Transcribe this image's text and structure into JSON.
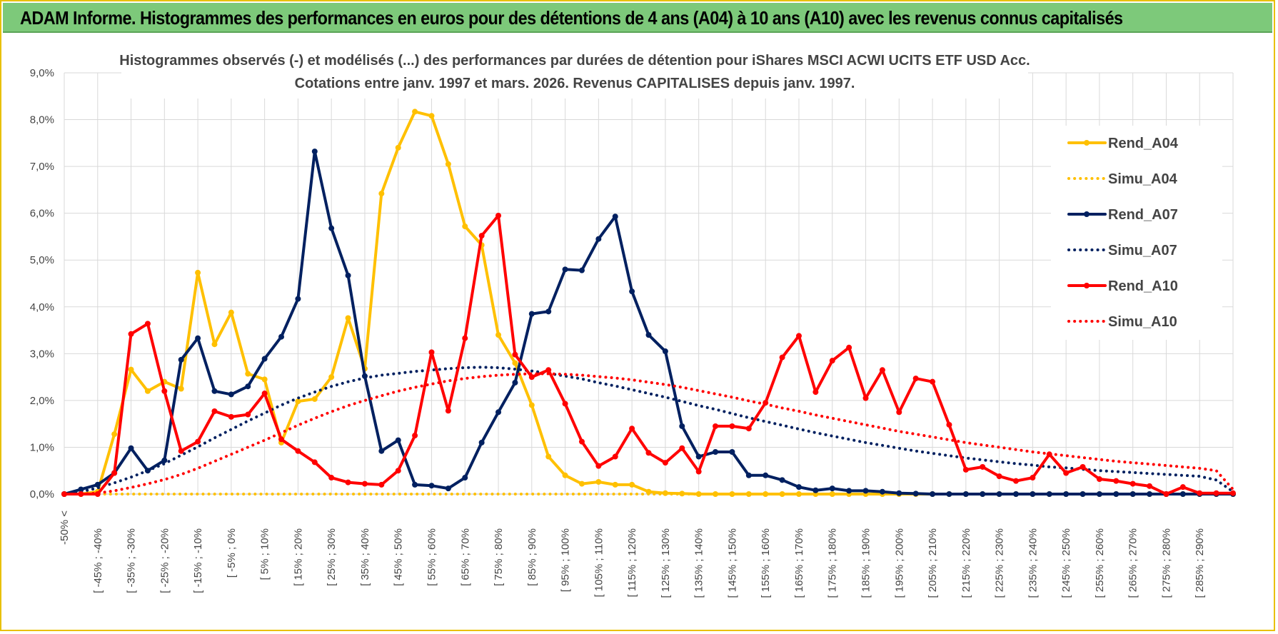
{
  "banner": {
    "title": "ADAM Informe. Histogrammes des performances en euros pour des détentions de 4 ans (A04) à 10 ans (A10) avec les revenus connus capitalisés"
  },
  "colors": {
    "a04": "#ffc000",
    "a07": "#002060",
    "a10": "#ff0000",
    "grid": "#d9d9d9",
    "banner": "#7dc97a"
  },
  "chart_data": {
    "type": "line",
    "title_lines": [
      "Histogrammes observés (-) et modélisés (...) des performances par durées de détention pour iShares MSCI ACWI UCITS ETF USD Acc.",
      "Cotations entre janv. 1997 et mars. 2026.  Revenus CAPITALISES depuis janv. 1997."
    ],
    "ylim": [
      0,
      9
    ],
    "y_ticks": [
      0,
      1,
      2,
      3,
      4,
      5,
      6,
      7,
      8,
      9
    ],
    "y_tick_labels": [
      "0,0%",
      "1,0%",
      "2,0%",
      "3,0%",
      "4,0%",
      "5,0%",
      "6,0%",
      "7,0%",
      "8,0%",
      "9,0%"
    ],
    "x_tick_labels": [
      "-50% <",
      "[ -45% ; -40%",
      "[ -35% ; -30%",
      "[ -25% ; -20%",
      "[ -15% ; -10%",
      "[ -5% ; 0%",
      "[ 5% ; 10%",
      "[ 15% ; 20%",
      "[ 25% ; 30%",
      "[ 35% ; 40%",
      "[ 45% ; 50%",
      "[ 55% ; 60%",
      "[ 65% ; 70%",
      "[ 75% ; 80%",
      "[ 85% ; 90%",
      "[ 95% ; 100%",
      "[ 105% ; 110%",
      "[ 115% ; 120%",
      "[ 125% ; 130%",
      "[ 135% ; 140%",
      "[ 145% ; 150%",
      "[ 155% ; 160%",
      "[ 165% ; 170%",
      "[ 175% ; 180%",
      "[ 185% ; 190%",
      "[ 195% ; 200%",
      "[ 205% ; 210%",
      "[ 215% ; 220%",
      "[ 225% ; 230%",
      "[ 235% ; 240%",
      "[ 245% ; 250%",
      "[ 255% ; 260%",
      "[ 265% ; 270%",
      "[ 275% ; 280%",
      "[ 285% ; 290%"
    ],
    "n_points": 71,
    "legend_position": "right",
    "series": [
      {
        "name": "Rend_A04",
        "style": "solid",
        "color": "#ffc000",
        "values": [
          0,
          0,
          0.05,
          1.28,
          2.66,
          2.2,
          2.4,
          2.25,
          4.73,
          3.2,
          3.88,
          2.57,
          2.45,
          1.1,
          1.98,
          2.03,
          2.5,
          3.76,
          2.68,
          6.42,
          7.4,
          8.17,
          8.08,
          7.05,
          5.72,
          5.32,
          3.4,
          2.8,
          1.9,
          0.8,
          0.4,
          0.22,
          0.26,
          0.2,
          0.2,
          0.05,
          0.02,
          0.01,
          0,
          0,
          0,
          0,
          0,
          0,
          0,
          0,
          0,
          0,
          0,
          0,
          0,
          0,
          0,
          0,
          0,
          0,
          0,
          0,
          0,
          0,
          0,
          0,
          0,
          0,
          0,
          0,
          0,
          0,
          0,
          0,
          0
        ]
      },
      {
        "name": "Simu_A04",
        "style": "dotted",
        "color": "#ffc000",
        "values": [
          0,
          0,
          0,
          0,
          0,
          0,
          0,
          0,
          0,
          0,
          0,
          0,
          0,
          0,
          0,
          0,
          0,
          0,
          0,
          0,
          0,
          0,
          0,
          0,
          0,
          0,
          0,
          0,
          0,
          0,
          0,
          0,
          0,
          0,
          0,
          0,
          0,
          0,
          0,
          0,
          0,
          0,
          0,
          0,
          0,
          0,
          0,
          0,
          0,
          0,
          0,
          0,
          0,
          0,
          0,
          0,
          0,
          0,
          0,
          0,
          0,
          0,
          0,
          0,
          0,
          0,
          0,
          0,
          0,
          0,
          0
        ]
      },
      {
        "name": "Rend_A07",
        "style": "solid",
        "color": "#002060",
        "values": [
          0,
          0.1,
          0.2,
          0.45,
          0.98,
          0.5,
          0.72,
          2.87,
          3.33,
          2.2,
          2.13,
          2.3,
          2.89,
          3.36,
          4.17,
          7.32,
          5.68,
          4.67,
          2.52,
          0.92,
          1.15,
          0.2,
          0.18,
          0.12,
          0.35,
          1.1,
          1.75,
          2.38,
          3.85,
          3.9,
          4.8,
          4.78,
          5.45,
          5.93,
          4.33,
          3.4,
          3.05,
          1.45,
          0.8,
          0.9,
          0.9,
          0.4,
          0.4,
          0.3,
          0.15,
          0.08,
          0.12,
          0.07,
          0.07,
          0.05,
          0.02,
          0.01,
          0,
          0,
          0,
          0,
          0,
          0,
          0,
          0,
          0,
          0,
          0,
          0,
          0,
          0,
          0,
          0,
          0,
          0,
          0
        ]
      },
      {
        "name": "Simu_A07",
        "style": "dotted",
        "color": "#002060",
        "values": [
          0.02,
          0.05,
          0.13,
          0.24,
          0.36,
          0.5,
          0.65,
          0.83,
          1.01,
          1.2,
          1.38,
          1.56,
          1.73,
          1.9,
          2.05,
          2.18,
          2.3,
          2.4,
          2.48,
          2.54,
          2.58,
          2.62,
          2.65,
          2.68,
          2.7,
          2.71,
          2.7,
          2.67,
          2.63,
          2.58,
          2.52,
          2.46,
          2.38,
          2.31,
          2.23,
          2.15,
          2.07,
          1.98,
          1.89,
          1.81,
          1.72,
          1.63,
          1.55,
          1.47,
          1.39,
          1.31,
          1.24,
          1.17,
          1.1,
          1.04,
          0.98,
          0.92,
          0.87,
          0.82,
          0.77,
          0.73,
          0.69,
          0.65,
          0.62,
          0.58,
          0.56,
          0.53,
          0.5,
          0.48,
          0.46,
          0.44,
          0.42,
          0.4,
          0.38,
          0.3,
          0.05
        ]
      },
      {
        "name": "Rend_A10",
        "style": "solid",
        "color": "#ff0000",
        "values": [
          0,
          0,
          0,
          0.45,
          3.42,
          3.64,
          2.2,
          0.92,
          1.12,
          1.77,
          1.65,
          1.7,
          2.15,
          1.17,
          0.92,
          0.68,
          0.35,
          0.25,
          0.22,
          0.2,
          0.5,
          1.25,
          3.03,
          1.78,
          3.33,
          5.52,
          5.95,
          2.98,
          2.5,
          2.65,
          1.93,
          1.12,
          0.6,
          0.8,
          1.4,
          0.88,
          0.67,
          0.98,
          0.48,
          1.45,
          1.45,
          1.4,
          1.95,
          2.92,
          3.38,
          2.18,
          2.85,
          3.13,
          2.05,
          2.65,
          1.75,
          2.47,
          2.4,
          1.48,
          0.52,
          0.58,
          0.38,
          0.28,
          0.35,
          0.85,
          0.45,
          0.58,
          0.32,
          0.28,
          0.22,
          0.17,
          0.0,
          0.15,
          0.02,
          0.02,
          0.02
        ]
      },
      {
        "name": "Simu_A10",
        "style": "dotted",
        "color": "#ff0000",
        "values": [
          0,
          0,
          0.02,
          0.07,
          0.14,
          0.22,
          0.31,
          0.42,
          0.55,
          0.7,
          0.85,
          1.0,
          1.15,
          1.31,
          1.47,
          1.62,
          1.76,
          1.89,
          2.0,
          2.1,
          2.2,
          2.28,
          2.35,
          2.42,
          2.47,
          2.51,
          2.54,
          2.56,
          2.57,
          2.57,
          2.56,
          2.54,
          2.51,
          2.48,
          2.44,
          2.39,
          2.34,
          2.28,
          2.21,
          2.14,
          2.07,
          1.99,
          1.92,
          1.84,
          1.77,
          1.69,
          1.62,
          1.55,
          1.48,
          1.41,
          1.34,
          1.28,
          1.22,
          1.16,
          1.1,
          1.05,
          1.0,
          0.95,
          0.9,
          0.86,
          0.82,
          0.78,
          0.74,
          0.7,
          0.67,
          0.64,
          0.61,
          0.58,
          0.55,
          0.5,
          0.1
        ]
      }
    ]
  }
}
